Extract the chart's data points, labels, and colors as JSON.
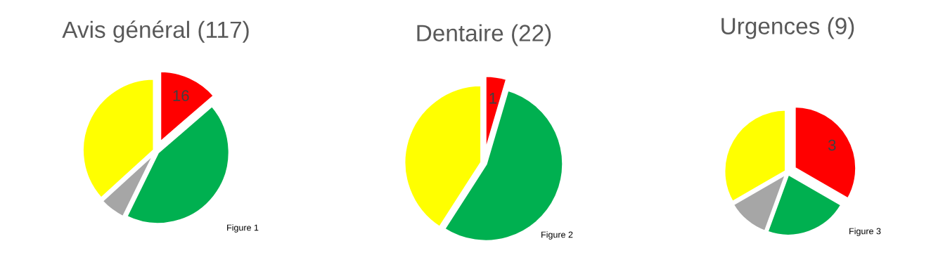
{
  "chart_data": [
    {
      "type": "pie",
      "title": "Avis général (117)",
      "categories": [
        null,
        null,
        null,
        null
      ],
      "values": [
        16,
        51,
        7,
        43
      ],
      "colors": [
        "#ff0000",
        "#00b050",
        "#a6a6a6",
        "#ffff00"
      ],
      "value_labels": [
        "16",
        null,
        null,
        null
      ],
      "annotations": [
        "Figure 1"
      ]
    },
    {
      "type": "pie",
      "title": "Dentaire (22)",
      "categories": [
        null,
        null,
        null
      ],
      "values": [
        1,
        12,
        9
      ],
      "colors": [
        "#ff0000",
        "#00b050",
        "#ffff00"
      ],
      "value_labels": [
        "1",
        null,
        null
      ],
      "annotations": [
        "Figure 2"
      ]
    },
    {
      "type": "pie",
      "title": "Urgences (9)",
      "categories": [
        null,
        null,
        null,
        null
      ],
      "values": [
        3,
        2,
        1,
        3
      ],
      "colors": [
        "#ff0000",
        "#00b050",
        "#a6a6a6",
        "#ffff00"
      ],
      "value_labels": [
        "3",
        null,
        null,
        null
      ],
      "annotations": [
        "Figure 3"
      ]
    }
  ]
}
